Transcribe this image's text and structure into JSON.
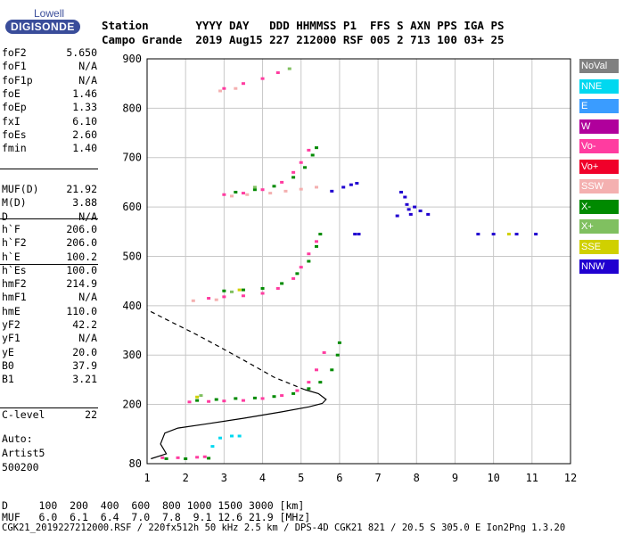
{
  "logo": {
    "top": "Lowell",
    "bottom": "DIGISONDE"
  },
  "header": {
    "row1": "Station       YYYY DAY   DDD HHMMSS P1  FFS S AXN PPS IGA PS",
    "row2": "Campo Grande  2019 Aug15 227 212000 RSF 005 2 713 100 03+ 25"
  },
  "params1": [
    {
      "k": "foF2",
      "v": "5.650"
    },
    {
      "k": "foF1",
      "v": "N/A"
    },
    {
      "k": "foF1p",
      "v": "N/A"
    },
    {
      "k": "foE",
      "v": "1.46"
    },
    {
      "k": "foEp",
      "v": "1.33"
    },
    {
      "k": "fxI",
      "v": "6.10"
    },
    {
      "k": "foEs",
      "v": "2.60"
    },
    {
      "k": "fmin",
      "v": "1.40"
    }
  ],
  "params2": [
    {
      "k": "MUF(D)",
      "v": "21.92"
    },
    {
      "k": "M(D)",
      "v": "3.88"
    },
    {
      "k": "D",
      "v": "N/A"
    }
  ],
  "params3": [
    {
      "k": "h`F",
      "v": "206.0"
    },
    {
      "k": "h`F2",
      "v": "206.0"
    },
    {
      "k": "h`E",
      "v": "100.2"
    },
    {
      "k": "h`Es",
      "v": "100.0"
    }
  ],
  "params4": [
    {
      "k": "hmF2",
      "v": "214.9"
    },
    {
      "k": "hmF1",
      "v": "N/A"
    },
    {
      "k": "hmE",
      "v": "110.0"
    },
    {
      "k": "yF2",
      "v": "42.2"
    },
    {
      "k": "yF1",
      "v": "N/A"
    },
    {
      "k": "yE",
      "v": "20.0"
    },
    {
      "k": "B0",
      "v": "37.9"
    },
    {
      "k": "B1",
      "v": "3.21"
    }
  ],
  "params5": [
    {
      "k": "C-level",
      "v": "22"
    }
  ],
  "info": {
    "l1": "Auto:",
    "l2": "Artist5",
    "l3": "500200"
  },
  "footer": {
    "d_row": "D     100  200  400  600  800 1000 1500 3000 [km]",
    "muf_row": "MUF   6.0  6.1  6.4  7.0  7.8  9.1 12.6 21.9 [MHz]",
    "file_row": "CGK21_2019227212000.RSF / 220fx512h 50 kHz 2.5 km / DPS-4D CGK21 821 / 20.5 S 305.0 E Ion2Png 1.3.20"
  },
  "legend": [
    {
      "label": "NoVal",
      "color": "#808080"
    },
    {
      "label": "NNE",
      "color": "#00d8f0"
    },
    {
      "label": "E",
      "color": "#3a9cff"
    },
    {
      "label": "W",
      "color": "#b0009c"
    },
    {
      "label": "Vo-",
      "color": "#ff3ca0"
    },
    {
      "label": "Vo+",
      "color": "#f0002a"
    },
    {
      "label": "SSW",
      "color": "#f4b0b0"
    },
    {
      "label": "X-",
      "color": "#008a00"
    },
    {
      "label": "X+",
      "color": "#80c060"
    },
    {
      "label": "SSE",
      "color": "#d0d000"
    },
    {
      "label": "NNW",
      "color": "#2000d0"
    }
  ],
  "chart_data": {
    "type": "scatter",
    "xlabel": "",
    "ylabel": "",
    "xlim": [
      1,
      12
    ],
    "ylim": [
      80,
      900
    ],
    "xticks": [
      "1",
      "2",
      "3",
      "4",
      "5",
      "6",
      "7",
      "8",
      "9",
      "10",
      "11",
      "12"
    ],
    "yticks": [
      "80",
      "200",
      "300",
      "400",
      "500",
      "600",
      "700",
      "800",
      "900"
    ],
    "grid": true,
    "series": [
      {
        "name": "Vo-",
        "color": "#ff3ca0",
        "points": [
          [
            1.4,
            92
          ],
          [
            1.8,
            92
          ],
          [
            2.3,
            93
          ],
          [
            2.5,
            94
          ],
          [
            2.1,
            205
          ],
          [
            2.6,
            206
          ],
          [
            3.0,
            207
          ],
          [
            3.5,
            208
          ],
          [
            4.0,
            212
          ],
          [
            4.5,
            218
          ],
          [
            4.9,
            228
          ],
          [
            5.2,
            245
          ],
          [
            5.4,
            270
          ],
          [
            5.6,
            305
          ],
          [
            2.6,
            415
          ],
          [
            3.0,
            418
          ],
          [
            3.5,
            420
          ],
          [
            4.0,
            425
          ],
          [
            4.4,
            435
          ],
          [
            4.8,
            455
          ],
          [
            5.0,
            478
          ],
          [
            5.2,
            505
          ],
          [
            5.4,
            530
          ],
          [
            3.0,
            625
          ],
          [
            3.5,
            628
          ],
          [
            4.0,
            635
          ],
          [
            4.5,
            650
          ],
          [
            4.8,
            670
          ],
          [
            5.0,
            690
          ],
          [
            5.2,
            715
          ],
          [
            3.0,
            840
          ],
          [
            3.5,
            850
          ],
          [
            4.0,
            860
          ],
          [
            4.4,
            872
          ]
        ]
      },
      {
        "name": "X-",
        "color": "#008a00",
        "points": [
          [
            1.5,
            90
          ],
          [
            2.0,
            90
          ],
          [
            2.6,
            91
          ],
          [
            2.3,
            208
          ],
          [
            2.8,
            210
          ],
          [
            3.3,
            212
          ],
          [
            3.8,
            213
          ],
          [
            4.3,
            216
          ],
          [
            4.8,
            222
          ],
          [
            5.2,
            232
          ],
          [
            5.5,
            245
          ],
          [
            5.8,
            270
          ],
          [
            5.95,
            300
          ],
          [
            6.0,
            325
          ],
          [
            3.0,
            430
          ],
          [
            3.5,
            432
          ],
          [
            4.0,
            435
          ],
          [
            4.5,
            445
          ],
          [
            4.9,
            465
          ],
          [
            5.2,
            490
          ],
          [
            5.4,
            520
          ],
          [
            5.5,
            545
          ],
          [
            3.3,
            630
          ],
          [
            3.8,
            635
          ],
          [
            4.3,
            642
          ],
          [
            4.8,
            660
          ],
          [
            5.1,
            680
          ],
          [
            5.3,
            705
          ],
          [
            5.4,
            720
          ]
        ]
      },
      {
        "name": "SSW",
        "color": "#f4b0b0",
        "points": [
          [
            2.2,
            410
          ],
          [
            2.8,
            412
          ],
          [
            3.2,
            622
          ],
          [
            3.6,
            625
          ],
          [
            4.2,
            628
          ],
          [
            4.6,
            632
          ],
          [
            5.0,
            636
          ],
          [
            5.4,
            640
          ],
          [
            2.9,
            835
          ],
          [
            3.3,
            840
          ]
        ]
      },
      {
        "name": "NNE",
        "color": "#00d8f0",
        "points": [
          [
            2.9,
            132
          ],
          [
            3.2,
            136
          ],
          [
            3.4,
            136
          ],
          [
            2.7,
            115
          ]
        ]
      },
      {
        "name": "X+",
        "color": "#80c060",
        "points": [
          [
            2.4,
            218
          ],
          [
            3.2,
            428
          ],
          [
            3.8,
            640
          ],
          [
            4.7,
            880
          ]
        ]
      },
      {
        "name": "SSE",
        "color": "#d0d000",
        "points": [
          [
            2.3,
            215
          ],
          [
            3.4,
            432
          ],
          [
            10.4,
            545
          ]
        ]
      },
      {
        "name": "NNW",
        "color": "#2000d0",
        "points": [
          [
            5.8,
            632
          ],
          [
            6.1,
            640
          ],
          [
            6.3,
            645
          ],
          [
            6.45,
            648
          ],
          [
            6.5,
            545
          ],
          [
            6.4,
            545
          ],
          [
            7.6,
            630
          ],
          [
            7.7,
            620
          ],
          [
            7.75,
            605
          ],
          [
            7.8,
            595
          ],
          [
            7.85,
            585
          ],
          [
            7.95,
            600
          ],
          [
            8.1,
            592
          ],
          [
            8.3,
            585
          ],
          [
            7.5,
            582
          ],
          [
            9.6,
            545
          ],
          [
            10.0,
            545
          ],
          [
            10.6,
            545
          ],
          [
            11.1,
            545
          ]
        ]
      }
    ],
    "profile": [
      [
        1.1,
        90
      ],
      [
        1.5,
        100
      ],
      [
        1.35,
        120
      ],
      [
        1.46,
        142
      ],
      [
        1.8,
        152
      ],
      [
        2.5,
        160
      ],
      [
        3.5,
        172
      ],
      [
        4.5,
        185
      ],
      [
        5.2,
        195
      ],
      [
        5.55,
        202
      ],
      [
        5.65,
        210
      ],
      [
        5.45,
        222
      ],
      [
        5.1,
        230
      ]
    ],
    "profile_ext": [
      [
        5.1,
        230
      ],
      [
        4.3,
        255
      ],
      [
        3.5,
        290
      ],
      [
        2.8,
        320
      ],
      [
        2.2,
        345
      ],
      [
        1.6,
        368
      ],
      [
        1.0,
        392
      ]
    ]
  }
}
